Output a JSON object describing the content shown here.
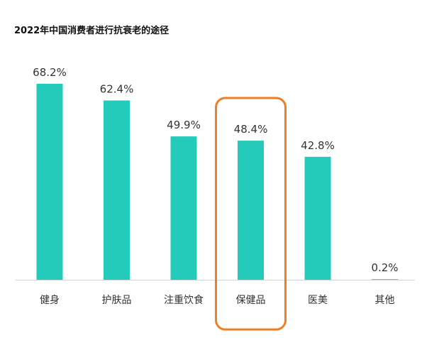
{
  "chart_data": {
    "type": "bar",
    "title": "2022年中国消费者进行抗衰老的途径",
    "categories": [
      "健身",
      "护肤品",
      "注重饮食",
      "保健品",
      "医美",
      "其他"
    ],
    "values": [
      68.2,
      62.4,
      49.9,
      48.4,
      42.8,
      0.2
    ],
    "value_labels": [
      "68.2%",
      "62.4%",
      "49.9%",
      "48.4%",
      "42.8%",
      "0.2%"
    ],
    "xlabel": "",
    "ylabel": "",
    "ylim": [
      0,
      70
    ],
    "grid": false,
    "bar_color": "#24CBBA",
    "highlight": {
      "category": "保健品",
      "color": "#F07E23"
    }
  }
}
